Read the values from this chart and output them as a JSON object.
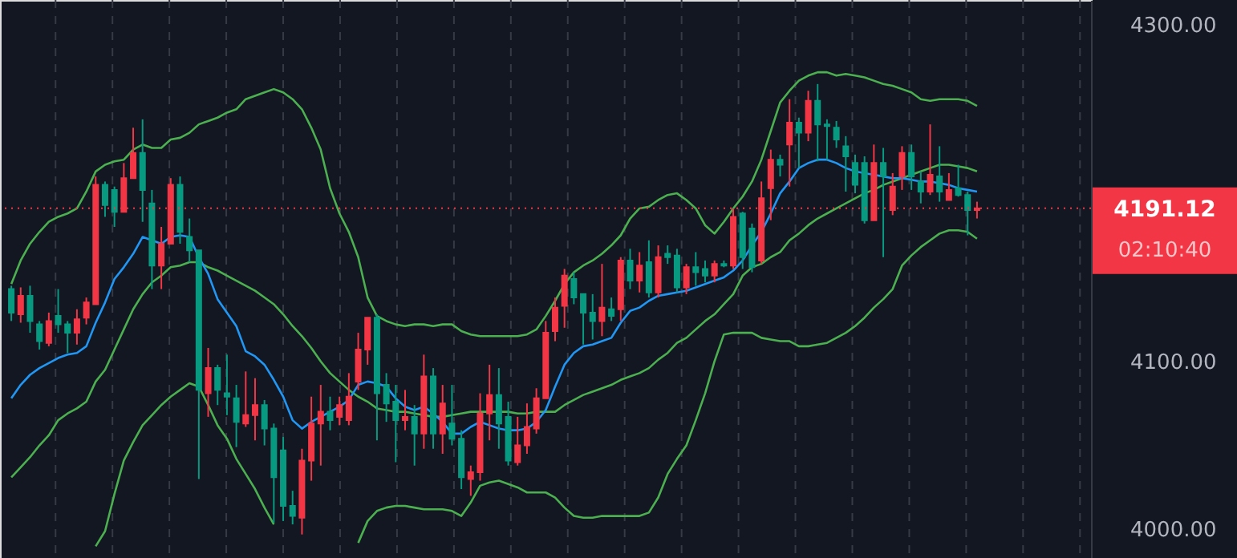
{
  "chart_data": {
    "type": "candlestick",
    "categories": [
      null,
      null,
      null,
      null,
      null,
      null,
      null,
      null,
      null,
      null,
      null,
      null,
      null,
      null,
      null,
      null,
      null,
      null,
      null,
      null,
      null,
      null,
      null,
      null,
      null,
      null,
      null,
      null,
      null,
      null,
      null,
      null,
      null,
      null,
      null,
      null,
      null,
      null,
      null,
      null,
      null,
      null,
      null,
      null,
      null,
      null,
      null,
      null,
      null,
      null,
      null,
      null,
      null,
      null,
      null,
      null,
      null,
      null,
      null,
      null,
      null,
      null,
      null,
      null,
      null,
      null,
      null,
      null,
      null,
      null,
      null,
      null,
      null,
      null,
      null,
      null,
      null,
      null,
      null,
      null,
      null,
      null,
      null,
      null,
      null,
      null,
      null,
      null,
      null,
      null,
      null,
      null,
      null,
      null,
      null,
      null,
      null,
      null,
      null,
      null,
      null,
      null,
      null,
      null
    ],
    "ohlc": [
      [
        4143,
        4145,
        4124,
        4129
      ],
      [
        4128,
        4144,
        4123,
        4139
      ],
      [
        4139,
        4145,
        4117,
        4124
      ],
      [
        4122,
        4124,
        4107,
        4112
      ],
      [
        4111,
        4129,
        4109,
        4124
      ],
      [
        4127,
        4143,
        4117,
        4122
      ],
      [
        4122,
        4124,
        4105,
        4117
      ],
      [
        4117,
        4131,
        4110,
        4125
      ],
      [
        4126,
        4138,
        4122,
        4135
      ],
      [
        4134,
        4210,
        4134,
        4205
      ],
      [
        4205,
        4207,
        4186,
        4193
      ],
      [
        4202,
        4204,
        4180,
        4189
      ],
      [
        4189,
        4218,
        4189,
        4209
      ],
      [
        4209,
        4239,
        4209,
        4224
      ],
      [
        4224,
        4244,
        4183,
        4202
      ],
      [
        4194,
        4202,
        4143,
        4157
      ],
      [
        4157,
        4180,
        4143,
        4170
      ],
      [
        4170,
        4209,
        4170,
        4205
      ],
      [
        4205,
        4210,
        4170,
        4177
      ],
      [
        4174,
        4185,
        4159,
        4166
      ],
      [
        4166,
        4166,
        4030,
        4083
      ],
      [
        4081,
        4108,
        4067,
        4096
      ],
      [
        4096,
        4098,
        4074,
        4083
      ],
      [
        4081,
        4104,
        4068,
        4079
      ],
      [
        4078,
        4086,
        4049,
        4064
      ],
      [
        4063,
        4094,
        4061,
        4068
      ],
      [
        4068,
        4090,
        4053,
        4074
      ],
      [
        4074,
        4077,
        4050,
        4060
      ],
      [
        4060,
        4063,
        4004,
        4031
      ],
      [
        4047,
        4055,
        4005,
        4014
      ],
      [
        4014,
        4023,
        4003,
        4008
      ],
      [
        4007,
        4048,
        3997,
        4041
      ],
      [
        4041,
        4079,
        4029,
        4063
      ],
      [
        4063,
        4086,
        4038,
        4070
      ],
      [
        4070,
        4079,
        4059,
        4065
      ],
      [
        4067,
        4079,
        4062,
        4074
      ],
      [
        4065,
        4093,
        4062,
        4079
      ],
      [
        4088,
        4117,
        4083,
        4107
      ],
      [
        4107,
        4126,
        4098,
        4126
      ],
      [
        4126,
        4128,
        4053,
        4081
      ],
      [
        4086,
        4093,
        4064,
        4075
      ],
      [
        4076,
        4086,
        4040,
        4065
      ],
      [
        4065,
        4083,
        4059,
        4067
      ],
      [
        4067,
        4074,
        4038,
        4057
      ],
      [
        4057,
        4104,
        4048,
        4091
      ],
      [
        4091,
        4096,
        4048,
        4057
      ],
      [
        4057,
        4086,
        4045,
        4075
      ],
      [
        4063,
        4086,
        4050,
        4054
      ],
      [
        4054,
        4059,
        4024,
        4031
      ],
      [
        4030,
        4038,
        4020,
        4034
      ],
      [
        4034,
        4081,
        4029,
        4069
      ],
      [
        4069,
        4098,
        4053,
        4080
      ],
      [
        4080,
        4096,
        4048,
        4063
      ],
      [
        4067,
        4076,
        4038,
        4041
      ],
      [
        4040,
        4067,
        4038,
        4050
      ],
      [
        4050,
        4075,
        4045,
        4061
      ],
      [
        4060,
        4084,
        4057,
        4078
      ],
      [
        4078,
        4124,
        4078,
        4117
      ],
      [
        4118,
        4138,
        4112,
        4132
      ],
      [
        4133,
        4155,
        4120,
        4151
      ],
      [
        4149,
        4153,
        4134,
        4138
      ],
      [
        4140,
        4140,
        4110,
        4129
      ],
      [
        4129,
        4140,
        4113,
        4124
      ],
      [
        4124,
        4158,
        4115,
        4132
      ],
      [
        4131,
        4138,
        4124,
        4127
      ],
      [
        4131,
        4162,
        4124,
        4160
      ],
      [
        4160,
        4167,
        4143,
        4148
      ],
      [
        4148,
        4165,
        4141,
        4157
      ],
      [
        4159,
        4172,
        4138,
        4141
      ],
      [
        4141,
        4169,
        4138,
        4162
      ],
      [
        4164,
        4169,
        4158,
        4162
      ],
      [
        4163,
        4167,
        4141,
        4144
      ],
      [
        4144,
        4158,
        4140,
        4156
      ],
      [
        4156,
        4165,
        4145,
        4153
      ],
      [
        4155,
        4160,
        4147,
        4151
      ],
      [
        4151,
        4160,
        4147,
        4158
      ],
      [
        4158,
        4160,
        4156,
        4157
      ],
      [
        4157,
        4191,
        4155,
        4186
      ],
      [
        4188,
        4189,
        4155,
        4162
      ],
      [
        4179,
        4182,
        4153,
        4156
      ],
      [
        4160,
        4207,
        4158,
        4197
      ],
      [
        4203,
        4226,
        4184,
        4220
      ],
      [
        4220,
        4223,
        4210,
        4217
      ],
      [
        4229,
        4256,
        4204,
        4242
      ],
      [
        4242,
        4245,
        4215,
        4236
      ],
      [
        4236,
        4261,
        4231,
        4255
      ],
      [
        4255,
        4265,
        4219,
        4241
      ],
      [
        4241,
        4244,
        4220,
        4240
      ],
      [
        4239,
        4243,
        4227,
        4232
      ],
      [
        4228,
        4234,
        4201,
        4222
      ],
      [
        4218,
        4223,
        4200,
        4205
      ],
      [
        4218,
        4222,
        4182,
        4184
      ],
      [
        4184,
        4229,
        4184,
        4218
      ],
      [
        4218,
        4227,
        4162,
        4210
      ],
      [
        4190,
        4212,
        4187,
        4204
      ],
      [
        4210,
        4228,
        4202,
        4224
      ],
      [
        4224,
        4229,
        4202,
        4210
      ],
      [
        4207,
        4213,
        4194,
        4201
      ],
      [
        4201,
        4241,
        4199,
        4211
      ],
      [
        4210,
        4228,
        4195,
        4201
      ],
      [
        4196,
        4212,
        4196,
        4202
      ],
      [
        4203,
        4217,
        4198,
        4199
      ],
      [
        4199,
        4201,
        4175,
        4190
      ],
      [
        4190,
        4195,
        4185,
        4191
      ]
    ],
    "colors": [
      "#089981",
      "#f23645",
      "#089981",
      "#089981",
      "#f23645",
      "#089981",
      "#089981",
      "#f23645",
      "#f23645",
      "#f23645",
      "#089981",
      "#089981",
      "#f23645",
      "#f23645",
      "#089981",
      "#089981",
      "#f23645",
      "#f23645",
      "#089981",
      "#089981",
      "#089981",
      "#f23645",
      "#089981",
      "#089981",
      "#089981",
      "#f23645",
      "#f23645",
      "#089981",
      "#089981",
      "#089981",
      "#089981",
      "#f23645",
      "#f23645",
      "#f23645",
      "#089981",
      "#f23645",
      "#f23645",
      "#f23645",
      "#f23645",
      "#089981",
      "#089981",
      "#089981",
      "#f23645",
      "#089981",
      "#f23645",
      "#089981",
      "#f23645",
      "#089981",
      "#089981",
      "#f23645",
      "#f23645",
      "#f23645",
      "#089981",
      "#089981",
      "#f23645",
      "#f23645",
      "#f23645",
      "#f23645",
      "#f23645",
      "#f23645",
      "#089981",
      "#089981",
      "#089981",
      "#f23645",
      "#089981",
      "#f23645",
      "#089981",
      "#f23645",
      "#089981",
      "#f23645",
      "#089981",
      "#089981",
      "#f23645",
      "#089981",
      "#089981",
      "#f23645",
      "#089981",
      "#f23645",
      "#089981",
      "#089981",
      "#f23645",
      "#f23645",
      "#089981",
      "#f23645",
      "#089981",
      "#f23645",
      "#089981",
      "#089981",
      "#089981",
      "#089981",
      "#089981",
      "#089981",
      "#f23645",
      "#089981",
      "#f23645",
      "#f23645",
      "#089981",
      "#089981",
      "#f23645",
      "#089981",
      "#f23645",
      "#089981",
      "#089981",
      "#f23645"
    ],
    "series": [
      {
        "type": "line",
        "color": "#4caf50",
        "values": [
          4146,
          4160,
          4170,
          4177,
          4183,
          4186,
          4188,
          4191,
          4201,
          4213,
          4217,
          4219,
          4220,
          4226,
          4229,
          4227,
          4227,
          4232,
          4233,
          4236,
          4241,
          4243,
          4245,
          4248,
          4250,
          4256,
          4258,
          4260,
          4262,
          4260,
          4256,
          4250,
          4239,
          4226,
          4203,
          4188,
          4177,
          4162,
          4138,
          4127,
          4124,
          4122,
          4121,
          4122,
          4122,
          4121,
          4122,
          4122,
          4118,
          4116,
          4115,
          4115,
          4115,
          4115,
          4115,
          4116,
          4119,
          4127,
          4136,
          4146,
          4153,
          4157,
          4160,
          4164,
          4169,
          4175,
          4185,
          4191,
          4192,
          4196,
          4199,
          4200,
          4196,
          4191,
          4181,
          4176,
          4183,
          4191,
          4198,
          4207,
          4220,
          4237,
          4254,
          4261,
          4267,
          4270,
          4272,
          4272,
          4270,
          4271,
          4270,
          4269,
          4267,
          4265,
          4264,
          4262,
          4260,
          4256,
          4255,
          4256,
          4256,
          4256,
          4255,
          4252
        ]
      },
      {
        "type": "line",
        "color": "#4caf50",
        "values": [
          4031,
          4037,
          4043,
          4050,
          4056,
          4065,
          4069,
          4072,
          4076,
          4088,
          4095,
          4107,
          4119,
          4131,
          4140,
          4147,
          4151,
          4156,
          4157,
          4159,
          4159,
          4156,
          4154,
          4151,
          4148,
          4145,
          4142,
          4138,
          4134,
          4128,
          4121,
          4115,
          4108,
          4100,
          4093,
          4088,
          4083,
          4079,
          4076,
          4072,
          4071,
          4070,
          4070,
          4069,
          4068,
          4067,
          4067,
          4068,
          4069,
          4070,
          4070,
          4070,
          4070,
          4070,
          4069,
          4069,
          4070,
          4070,
          4070,
          4074,
          4077,
          4080,
          4082,
          4084,
          4086,
          4089,
          4091,
          4093,
          4096,
          4101,
          4105,
          4111,
          4114,
          4119,
          4124,
          4128,
          4134,
          4140,
          4151,
          4156,
          4158,
          4162,
          4165,
          4172,
          4176,
          4181,
          4185,
          4188,
          4191,
          4194,
          4197,
          4200,
          4202,
          4205,
          4207,
          4209,
          4211,
          4213,
          4215,
          4217,
          4217,
          4216,
          4215,
          4213
        ]
      },
      {
        "type": "line",
        "color": "#4caf50",
        "values": [
          null,
          null,
          null,
          null,
          null,
          null,
          null,
          null,
          null,
          3990,
          3999,
          4021,
          4041,
          4052,
          4062,
          4068,
          4074,
          4079,
          4083,
          4087,
          4085,
          4074,
          4062,
          4054,
          4042,
          4033,
          4024,
          4013,
          4003,
          null,
          null,
          null,
          null,
          null,
          null,
          null,
          null,
          3992,
          4005,
          4011,
          4013,
          4014,
          4014,
          4013,
          4012,
          4012,
          4012,
          4011,
          4008,
          4016,
          4026,
          4028,
          4029,
          4027,
          4025,
          4022,
          4022,
          4022,
          4019,
          4013,
          4008,
          4007,
          4007,
          4008,
          4008,
          4008,
          4008,
          4008,
          4010,
          4019,
          4033,
          4042,
          4050,
          4065,
          4081,
          4100,
          4116,
          4117,
          4117,
          4117,
          4114,
          4113,
          4112,
          4112,
          4109,
          4109,
          4110,
          4111,
          4114,
          4117,
          4121,
          4126,
          4132,
          4137,
          4143,
          4157,
          4163,
          4168,
          4172,
          4176,
          4178,
          4178,
          4177,
          4173
        ]
      },
      {
        "type": "line",
        "color": "#2196f3",
        "values": [
          4078,
          4086,
          4092,
          4096,
          4099,
          4102,
          4104,
          4105,
          4109,
          4123,
          4135,
          4149,
          4156,
          4164,
          4174,
          4172,
          4170,
          4174,
          4175,
          4174,
          4162,
          4152,
          4137,
          4129,
          4121,
          4106,
          4103,
          4098,
          4089,
          4079,
          4065,
          4060,
          4064,
          4067,
          4070,
          4073,
          4077,
          4086,
          4088,
          4087,
          4085,
          4078,
          4073,
          4071,
          4073,
          4069,
          4064,
          4057,
          4057,
          4061,
          4064,
          4062,
          4060,
          4059,
          4059,
          4060,
          4064,
          4071,
          4085,
          4098,
          4105,
          4109,
          4110,
          4112,
          4114,
          4123,
          4130,
          4132,
          4136,
          4139,
          4140,
          4141,
          4142,
          4144,
          4146,
          4148,
          4150,
          4154,
          4160,
          4169,
          4177,
          4188,
          4200,
          4207,
          4215,
          4218,
          4220,
          4220,
          4218,
          4215,
          4213,
          4212,
          4211,
          4210,
          4209,
          4209,
          4208,
          4207,
          4207,
          4206,
          4205,
          4203,
          4202,
          4201
        ]
      }
    ],
    "ylim": [
      3983,
      4315
    ],
    "yticks": [
      {
        "value": 4000,
        "label": "4000.00"
      },
      {
        "value": 4100,
        "label": "4100.00"
      },
      {
        "value": 4300,
        "label": "4300.00"
      }
    ],
    "ref_lines": [
      {
        "axis": "y",
        "value": 4191.12,
        "label": "4191.12",
        "color": "#f23645",
        "line_style": "dotted"
      }
    ],
    "annotations": [
      "02:10:40"
    ],
    "grid": "x",
    "tick_labels": "y"
  }
}
